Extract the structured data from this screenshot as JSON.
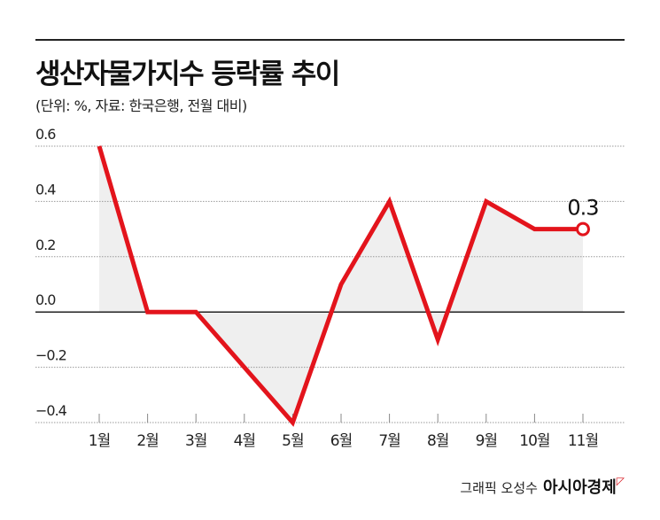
{
  "chart_data": {
    "type": "line",
    "title": "생산자물가지수 등락률 추이",
    "subtitle": "(단위: %, 자료: 한국은행, 전월 대비)",
    "categories": [
      "1월",
      "2월",
      "3월",
      "4월",
      "5월",
      "6월",
      "7월",
      "8월",
      "9월",
      "10월",
      "11월"
    ],
    "values": [
      0.6,
      0.0,
      0.0,
      -0.2,
      -0.4,
      0.1,
      0.4,
      -0.1,
      0.4,
      0.3,
      0.3
    ],
    "yticks": [
      "0.6",
      "0.4",
      "0.2",
      "0.0",
      "−0.2",
      "−0.4"
    ],
    "ytick_values": [
      0.6,
      0.4,
      0.2,
      0.0,
      -0.2,
      -0.4
    ],
    "ylim": [
      -0.4,
      0.6
    ],
    "annotation": "0.3",
    "line_color": "#e3141c",
    "fill_color": "#efefef",
    "grid": true
  },
  "footer": {
    "credit": "그래픽 오성수",
    "brand": "아시아경제"
  }
}
